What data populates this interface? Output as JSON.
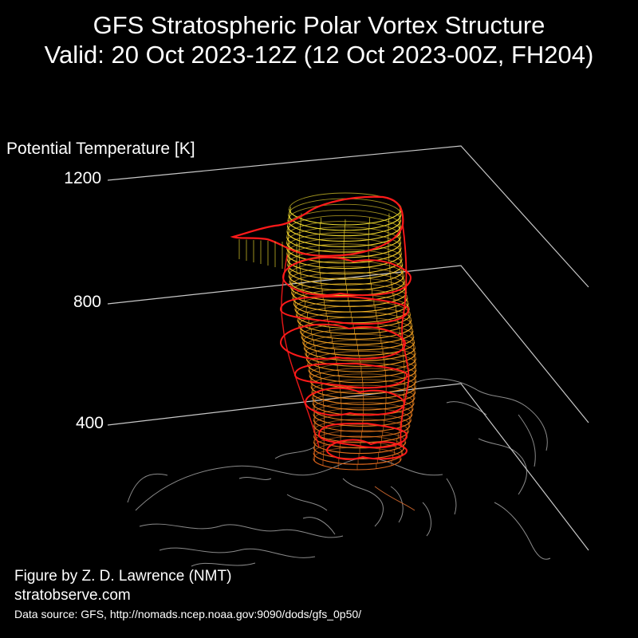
{
  "chart_data": {
    "type": "3d-isosurface",
    "title": "GFS Stratospheric Polar Vortex Structure",
    "subtitle": "Valid: 20 Oct 2023-12Z  (12 Oct 2023-00Z, FH204)",
    "zlabel": "Potential Temperature [K]",
    "z_ticks": [
      "400",
      "800",
      "1200"
    ],
    "zlim": [
      400,
      1200
    ],
    "grid": true,
    "colors": {
      "contours_low": "#e0661c",
      "contours_mid": "#f0a020",
      "contours_high": "#f2e030",
      "outline": "#ff1a1a",
      "coastlines": "#8a8a8a",
      "axes": "#c8c8c8"
    }
  },
  "footer": {
    "credit": "Figure by Z. D. Lawrence (NMT)",
    "website": "stratobserve.com",
    "source": "Data source: GFS, http://nomads.ncep.noaa.gov:9090/dods/gfs_0p50/"
  }
}
